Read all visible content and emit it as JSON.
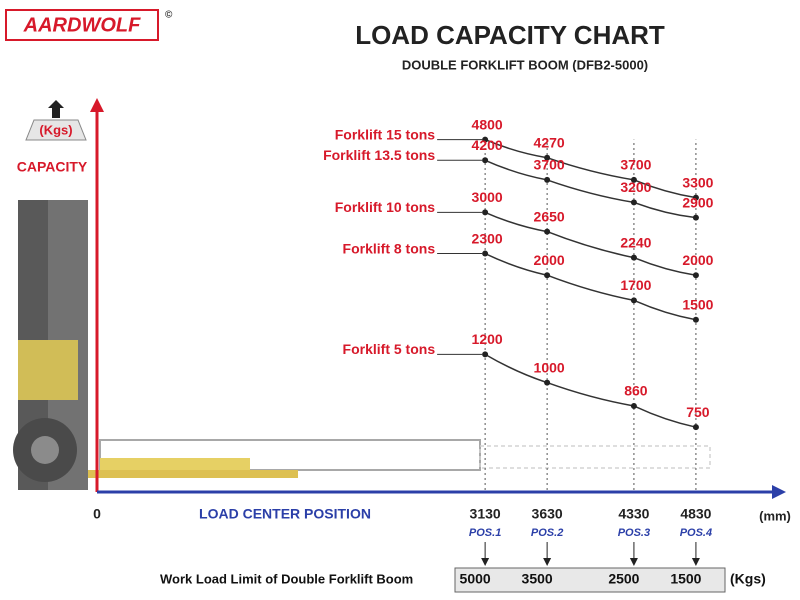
{
  "logo": "AARDWOLF",
  "chart_data": {
    "type": "line",
    "title": "LOAD CAPACITY CHART",
    "subtitle": "DOUBLE FORKLIFT BOOM (DFB2-5000)",
    "y_label": "CAPACITY",
    "y_unit": "(Kgs)",
    "x_label": "LOAD CENTER POSITION",
    "x_unit": "(mm)",
    "x": [
      3130,
      3630,
      4330,
      4830
    ],
    "positions": [
      "POS.1",
      "POS.2",
      "POS.3",
      "POS.4"
    ],
    "xlim": [
      0,
      5500
    ],
    "xticks": [
      0,
      3130,
      3630,
      4330,
      4830
    ],
    "ylim": [
      500,
      6000
    ],
    "log_scale": true,
    "series": [
      {
        "name": "Forklift 15 tons",
        "color": "#d7192a",
        "values": [
          4800,
          4270,
          3700,
          3300
        ]
      },
      {
        "name": "Forklift 13.5 tons",
        "color": "#d7192a",
        "values": [
          4200,
          3700,
          3200,
          2900
        ]
      },
      {
        "name": "Forklift 10 tons",
        "color": "#d7192a",
        "values": [
          3000,
          2650,
          2240,
          2000
        ]
      },
      {
        "name": "Forklift 8 tons",
        "color": "#d7192a",
        "values": [
          2300,
          2000,
          1700,
          1500
        ]
      },
      {
        "name": "Forklift 5 tons",
        "color": "#d7192a",
        "values": [
          1200,
          1000,
          860,
          750
        ]
      }
    ],
    "work_load_limit": {
      "label": "Work Load Limit of Double Forklift Boom",
      "values": [
        5000,
        3500,
        2500,
        1500
      ],
      "unit": "(Kgs)"
    }
  }
}
